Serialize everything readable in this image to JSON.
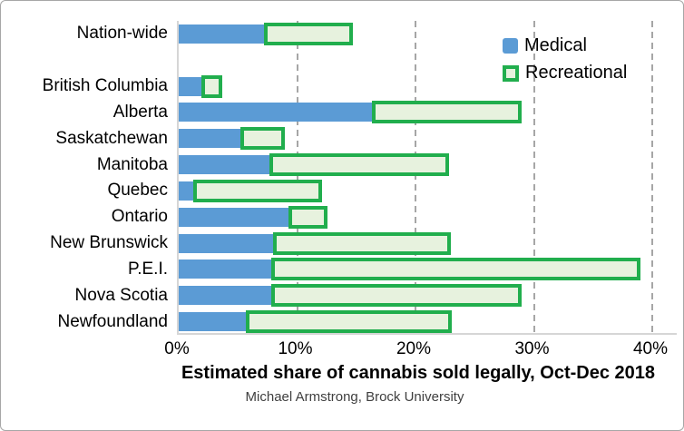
{
  "chart_data": {
    "type": "bar",
    "orientation": "horizontal",
    "stacked": true,
    "title": "Estimated share of cannabis sold legally, Oct-Dec 2018",
    "source": "Michael Armstrong, Brock University",
    "categories": [
      "Nation-wide",
      "",
      "British Columbia",
      "Alberta",
      "Saskatchewan",
      "Manitoba",
      "Quebec",
      "Ontario",
      "New Brunswick",
      "P.E.I.",
      "Nova Scotia",
      "Newfoundland"
    ],
    "series": [
      {
        "name": "Medical",
        "values": [
          7.2,
          null,
          1.9,
          16.3,
          5.2,
          7.7,
          1.2,
          9.3,
          8.0,
          7.8,
          7.8,
          5.7
        ]
      },
      {
        "name": "Recreational",
        "values": [
          7.5,
          null,
          1.8,
          12.7,
          3.8,
          15.1,
          10.9,
          3.3,
          15.0,
          31.2,
          21.2,
          17.4
        ]
      }
    ],
    "x_ticks": [
      "0%",
      "10%",
      "20%",
      "30%",
      "40%"
    ],
    "x_tick_values": [
      0,
      10,
      20,
      30,
      40
    ],
    "xlim": [
      0,
      42.2
    ],
    "grid": "dashed-vertical",
    "legend_position": "top-right",
    "colors": {
      "medical_fill": "#5B9BD5",
      "recreational_fill": "#E7F2DE",
      "recreational_border": "#21AE4D",
      "gridline": "#A6A6A6",
      "axis_line": "#D6D6D6",
      "frame_border": "#A6A6A6",
      "text": "#000000",
      "subtitle_text": "#3F3F3F"
    }
  }
}
